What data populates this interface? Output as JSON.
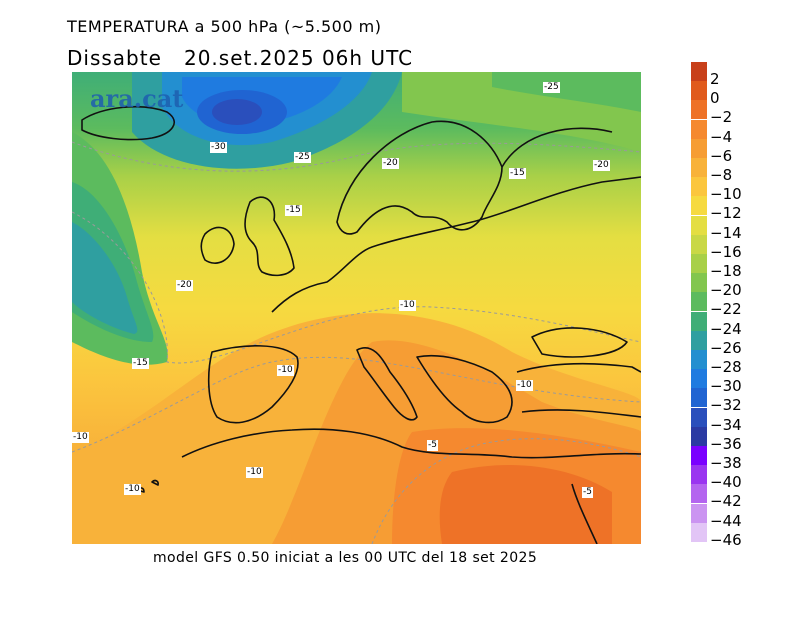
{
  "header": {
    "title": "TEMPERATURA a 500 hPa (~5.500 m)",
    "subtitle": "Dissabte   20.set.2025 06h UTC"
  },
  "footer": {
    "text": "model GFS 0.50 iniciat a les 00 UTC del 18 set 2025"
  },
  "map": {
    "logo_text": "ara.cat",
    "contour_labels": [
      "-25",
      "-30",
      "-25",
      "-20",
      "-15",
      "-20",
      "-15",
      "-20",
      "-10",
      "-15",
      "-10",
      "-10",
      "-10",
      "-5",
      "-10",
      "-10",
      "-5"
    ]
  },
  "colorbar": {
    "labels": [
      "2",
      "0",
      "−2",
      "−4",
      "−6",
      "−8",
      "−10",
      "−12",
      "−14",
      "−16",
      "−18",
      "−20",
      "−22",
      "−24",
      "−26",
      "−28",
      "−30",
      "−32",
      "−34",
      "−36",
      "−38",
      "−40",
      "−42",
      "−44",
      "−46"
    ],
    "colors": [
      "#c8401a",
      "#e05a1c",
      "#ee7227",
      "#f5892f",
      "#f69d34",
      "#f8b23a",
      "#fbc63e",
      "#f6da40",
      "#e4de42",
      "#c9d846",
      "#a8d048",
      "#82c64e",
      "#5cbb5e",
      "#3fae77",
      "#2f9fa0",
      "#238fd0",
      "#1f7be0",
      "#2064d2",
      "#2a4fbc",
      "#2b3aa3",
      "#7a00ff",
      "#9a35f0",
      "#b465ef",
      "#cb94f1",
      "#e2c5f6"
    ]
  }
}
